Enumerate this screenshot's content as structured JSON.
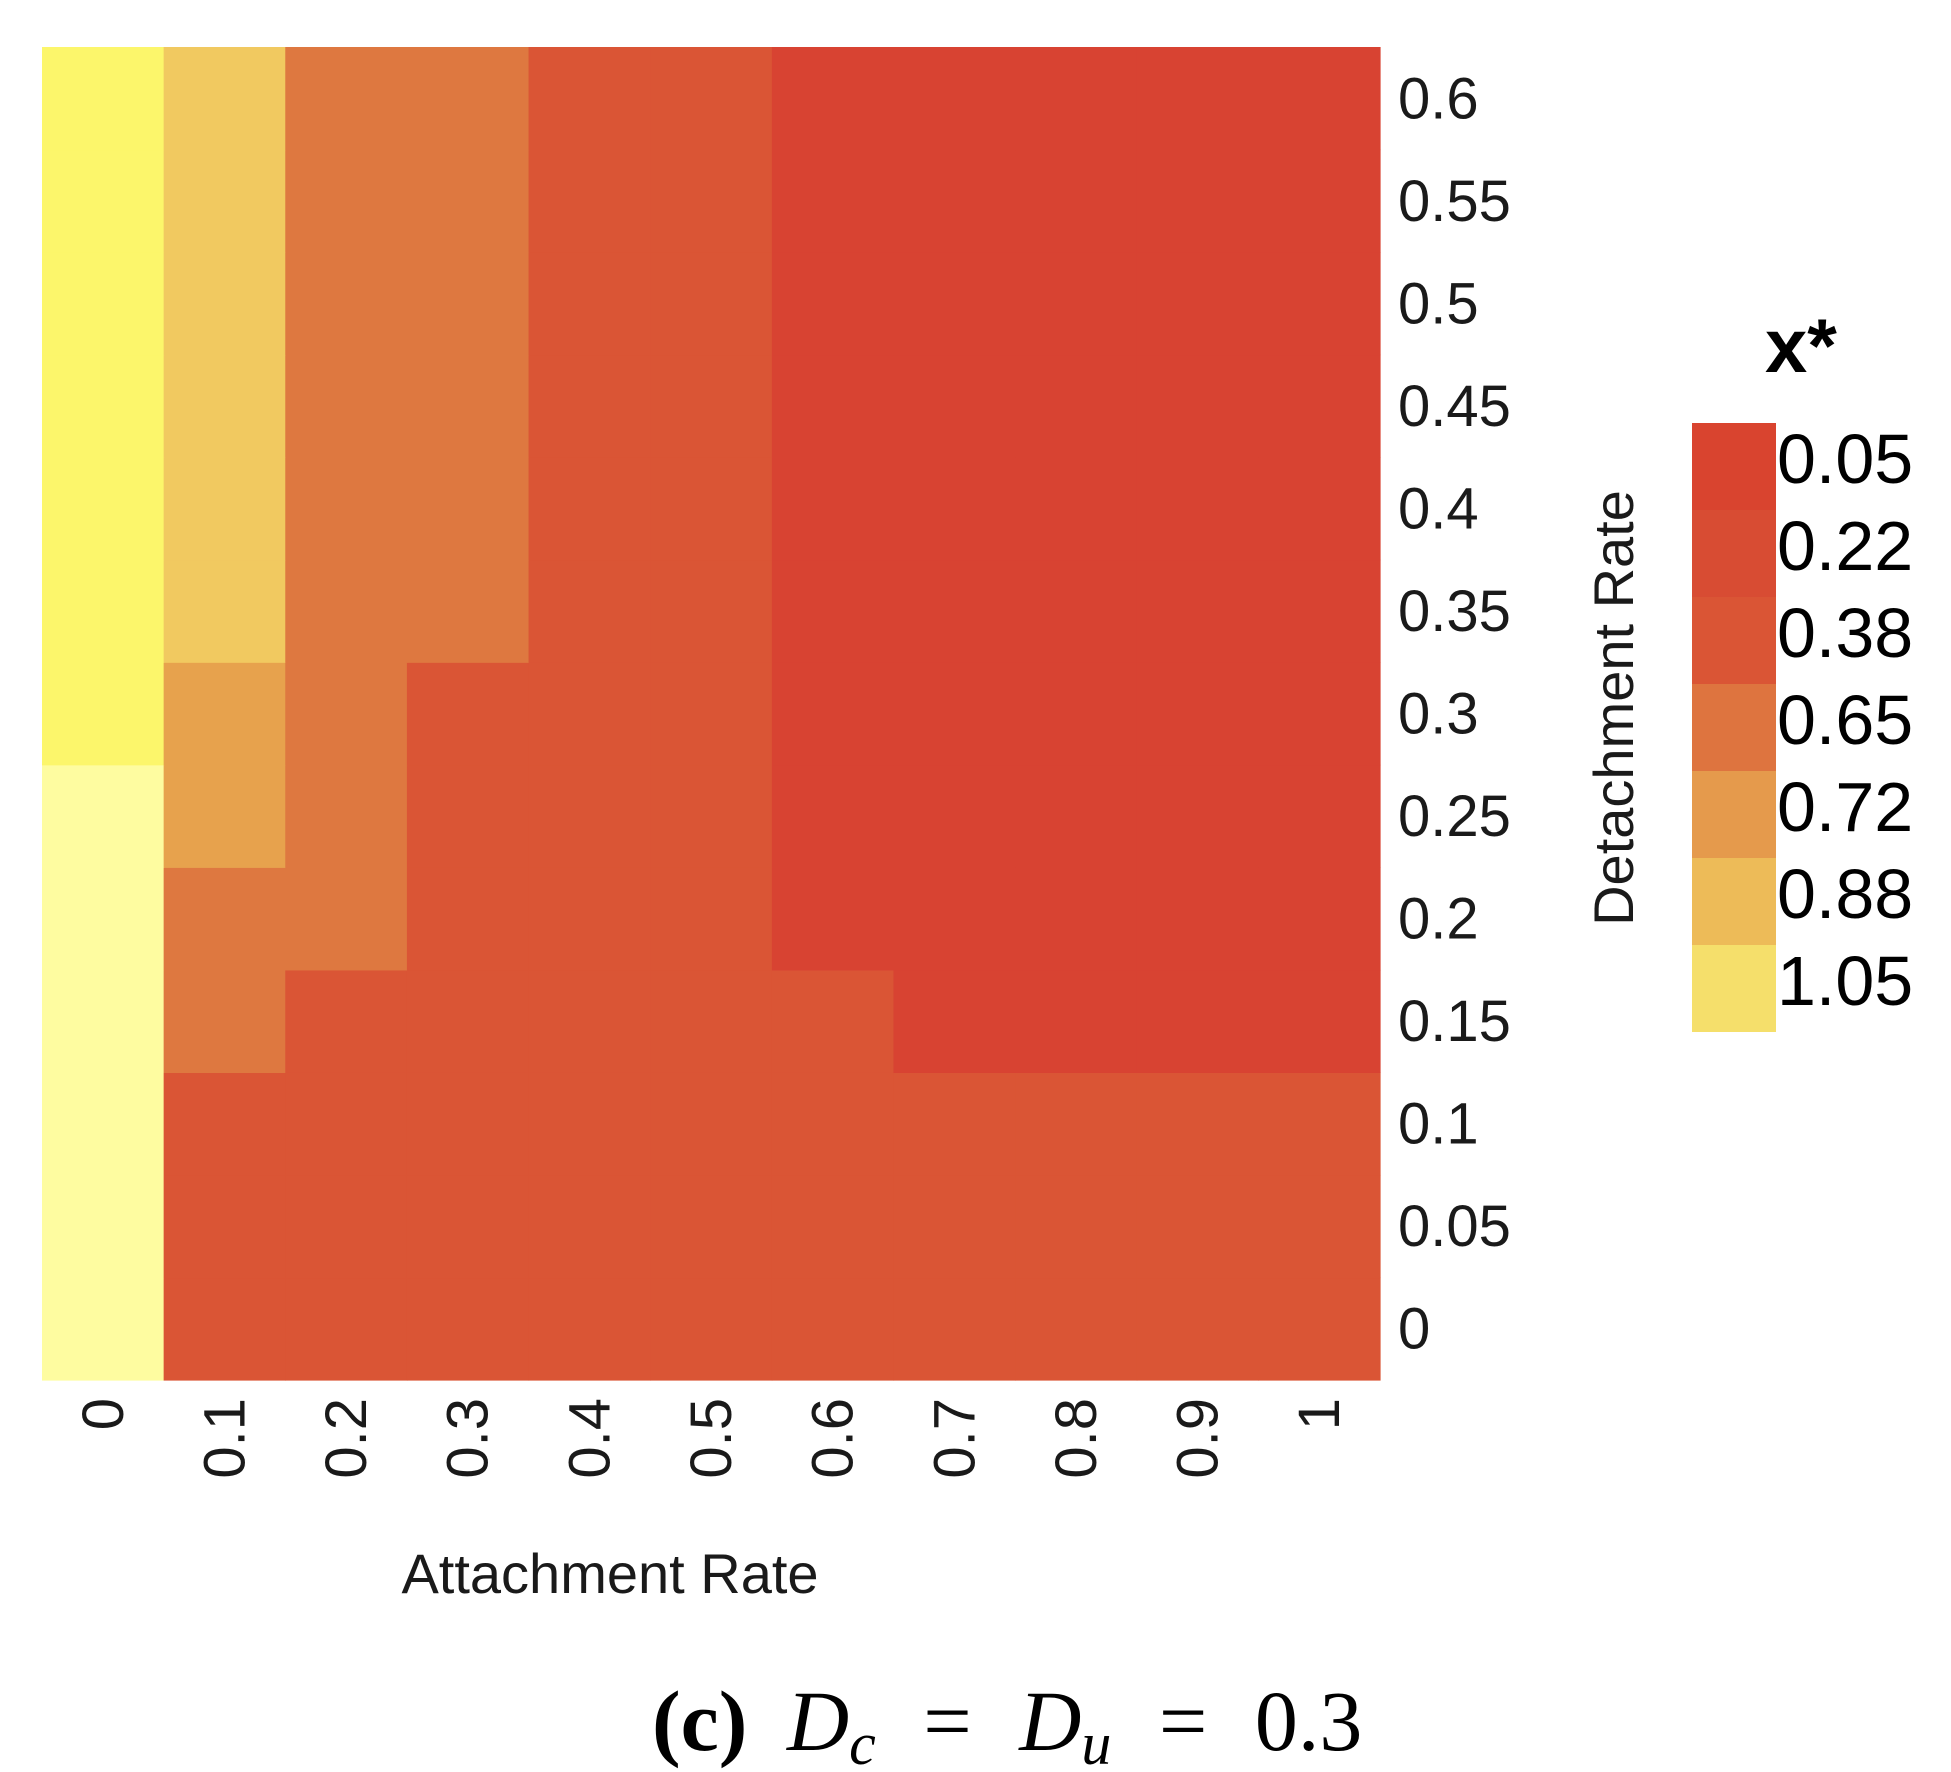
{
  "chart_data": {
    "type": "heatmap",
    "x_label": "Attachment Rate",
    "y_label": "Detachment Rate",
    "x_categories": [
      "0",
      "0.1",
      "0.2",
      "0.3",
      "0.4",
      "0.5",
      "0.6",
      "0.7",
      "0.8",
      "0.9",
      "1"
    ],
    "y_categories": [
      "0",
      "0.05",
      "0.1",
      "0.15",
      "0.2",
      "0.25",
      "0.3",
      "0.35",
      "0.4",
      "0.45",
      "0.5",
      "0.55",
      "0.6"
    ],
    "legend": {
      "title": "x*",
      "labels": [
        "0.05",
        "0.22",
        "0.38",
        "0.65",
        "0.72",
        "0.88",
        "1.05"
      ],
      "colors": [
        "#d9442f",
        "#d84c33",
        "#da5535",
        "#de743f",
        "#e59a4c",
        "#edbb58",
        "#f5df6b"
      ]
    },
    "cell_colors": {
      "c1": "#fefca0",
      "c2": "#fcf66b",
      "c3": "#f1c960",
      "c4": "#e7a24d",
      "c5": "#de7840",
      "c6": "#da5535",
      "c7": "#d84332"
    },
    "rows_bottom_to_top": [
      [
        "c1",
        "c6",
        "c6",
        "c6",
        "c6",
        "c6",
        "c6",
        "c6",
        "c6",
        "c6",
        "c6"
      ],
      [
        "c1",
        "c6",
        "c6",
        "c6",
        "c6",
        "c6",
        "c6",
        "c6",
        "c6",
        "c6",
        "c6"
      ],
      [
        "c1",
        "c6",
        "c6",
        "c6",
        "c6",
        "c6",
        "c6",
        "c6",
        "c6",
        "c6",
        "c6"
      ],
      [
        "c1",
        "c5",
        "c6",
        "c6",
        "c6",
        "c6",
        "c6",
        "c7",
        "c7",
        "c7",
        "c7"
      ],
      [
        "c1",
        "c5",
        "c5",
        "c6",
        "c6",
        "c6",
        "c7",
        "c7",
        "c7",
        "c7",
        "c7"
      ],
      [
        "c1",
        "c4",
        "c5",
        "c6",
        "c6",
        "c6",
        "c7",
        "c7",
        "c7",
        "c7",
        "c7"
      ],
      [
        "c2",
        "c4",
        "c5",
        "c6",
        "c6",
        "c6",
        "c7",
        "c7",
        "c7",
        "c7",
        "c7"
      ],
      [
        "c2",
        "c3",
        "c5",
        "c5",
        "c6",
        "c6",
        "c7",
        "c7",
        "c7",
        "c7",
        "c7"
      ],
      [
        "c2",
        "c3",
        "c5",
        "c5",
        "c6",
        "c6",
        "c7",
        "c7",
        "c7",
        "c7",
        "c7"
      ],
      [
        "c2",
        "c3",
        "c5",
        "c5",
        "c6",
        "c6",
        "c7",
        "c7",
        "c7",
        "c7",
        "c7"
      ],
      [
        "c2",
        "c3",
        "c5",
        "c5",
        "c6",
        "c6",
        "c7",
        "c7",
        "c7",
        "c7",
        "c7"
      ],
      [
        "c2",
        "c3",
        "c5",
        "c5",
        "c6",
        "c6",
        "c7",
        "c7",
        "c7",
        "c7",
        "c7"
      ],
      [
        "c2",
        "c3",
        "c5",
        "c5",
        "c6",
        "c6",
        "c7",
        "c7",
        "c7",
        "c7",
        "c7"
      ]
    ]
  },
  "caption": {
    "label": "(c)",
    "d1": "D",
    "sub1": "c",
    "eq1": "=",
    "d2": "D",
    "sub2": "u",
    "eq2": "=",
    "value": "0.3"
  }
}
